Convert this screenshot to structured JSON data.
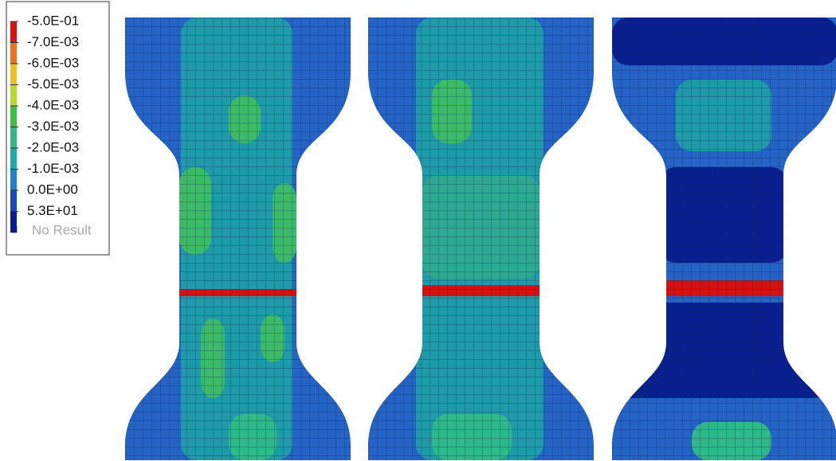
{
  "legend": {
    "labels": [
      "-5.0E-01",
      "-7.0E-03",
      "-6.0E-03",
      "-5.0E-03",
      "-4.0E-03",
      "-3.0E-03",
      "-2.0E-03",
      "-1.0E-03",
      "0.0E+00",
      "5.3E+01"
    ],
    "no_result": "No Result"
  }
}
